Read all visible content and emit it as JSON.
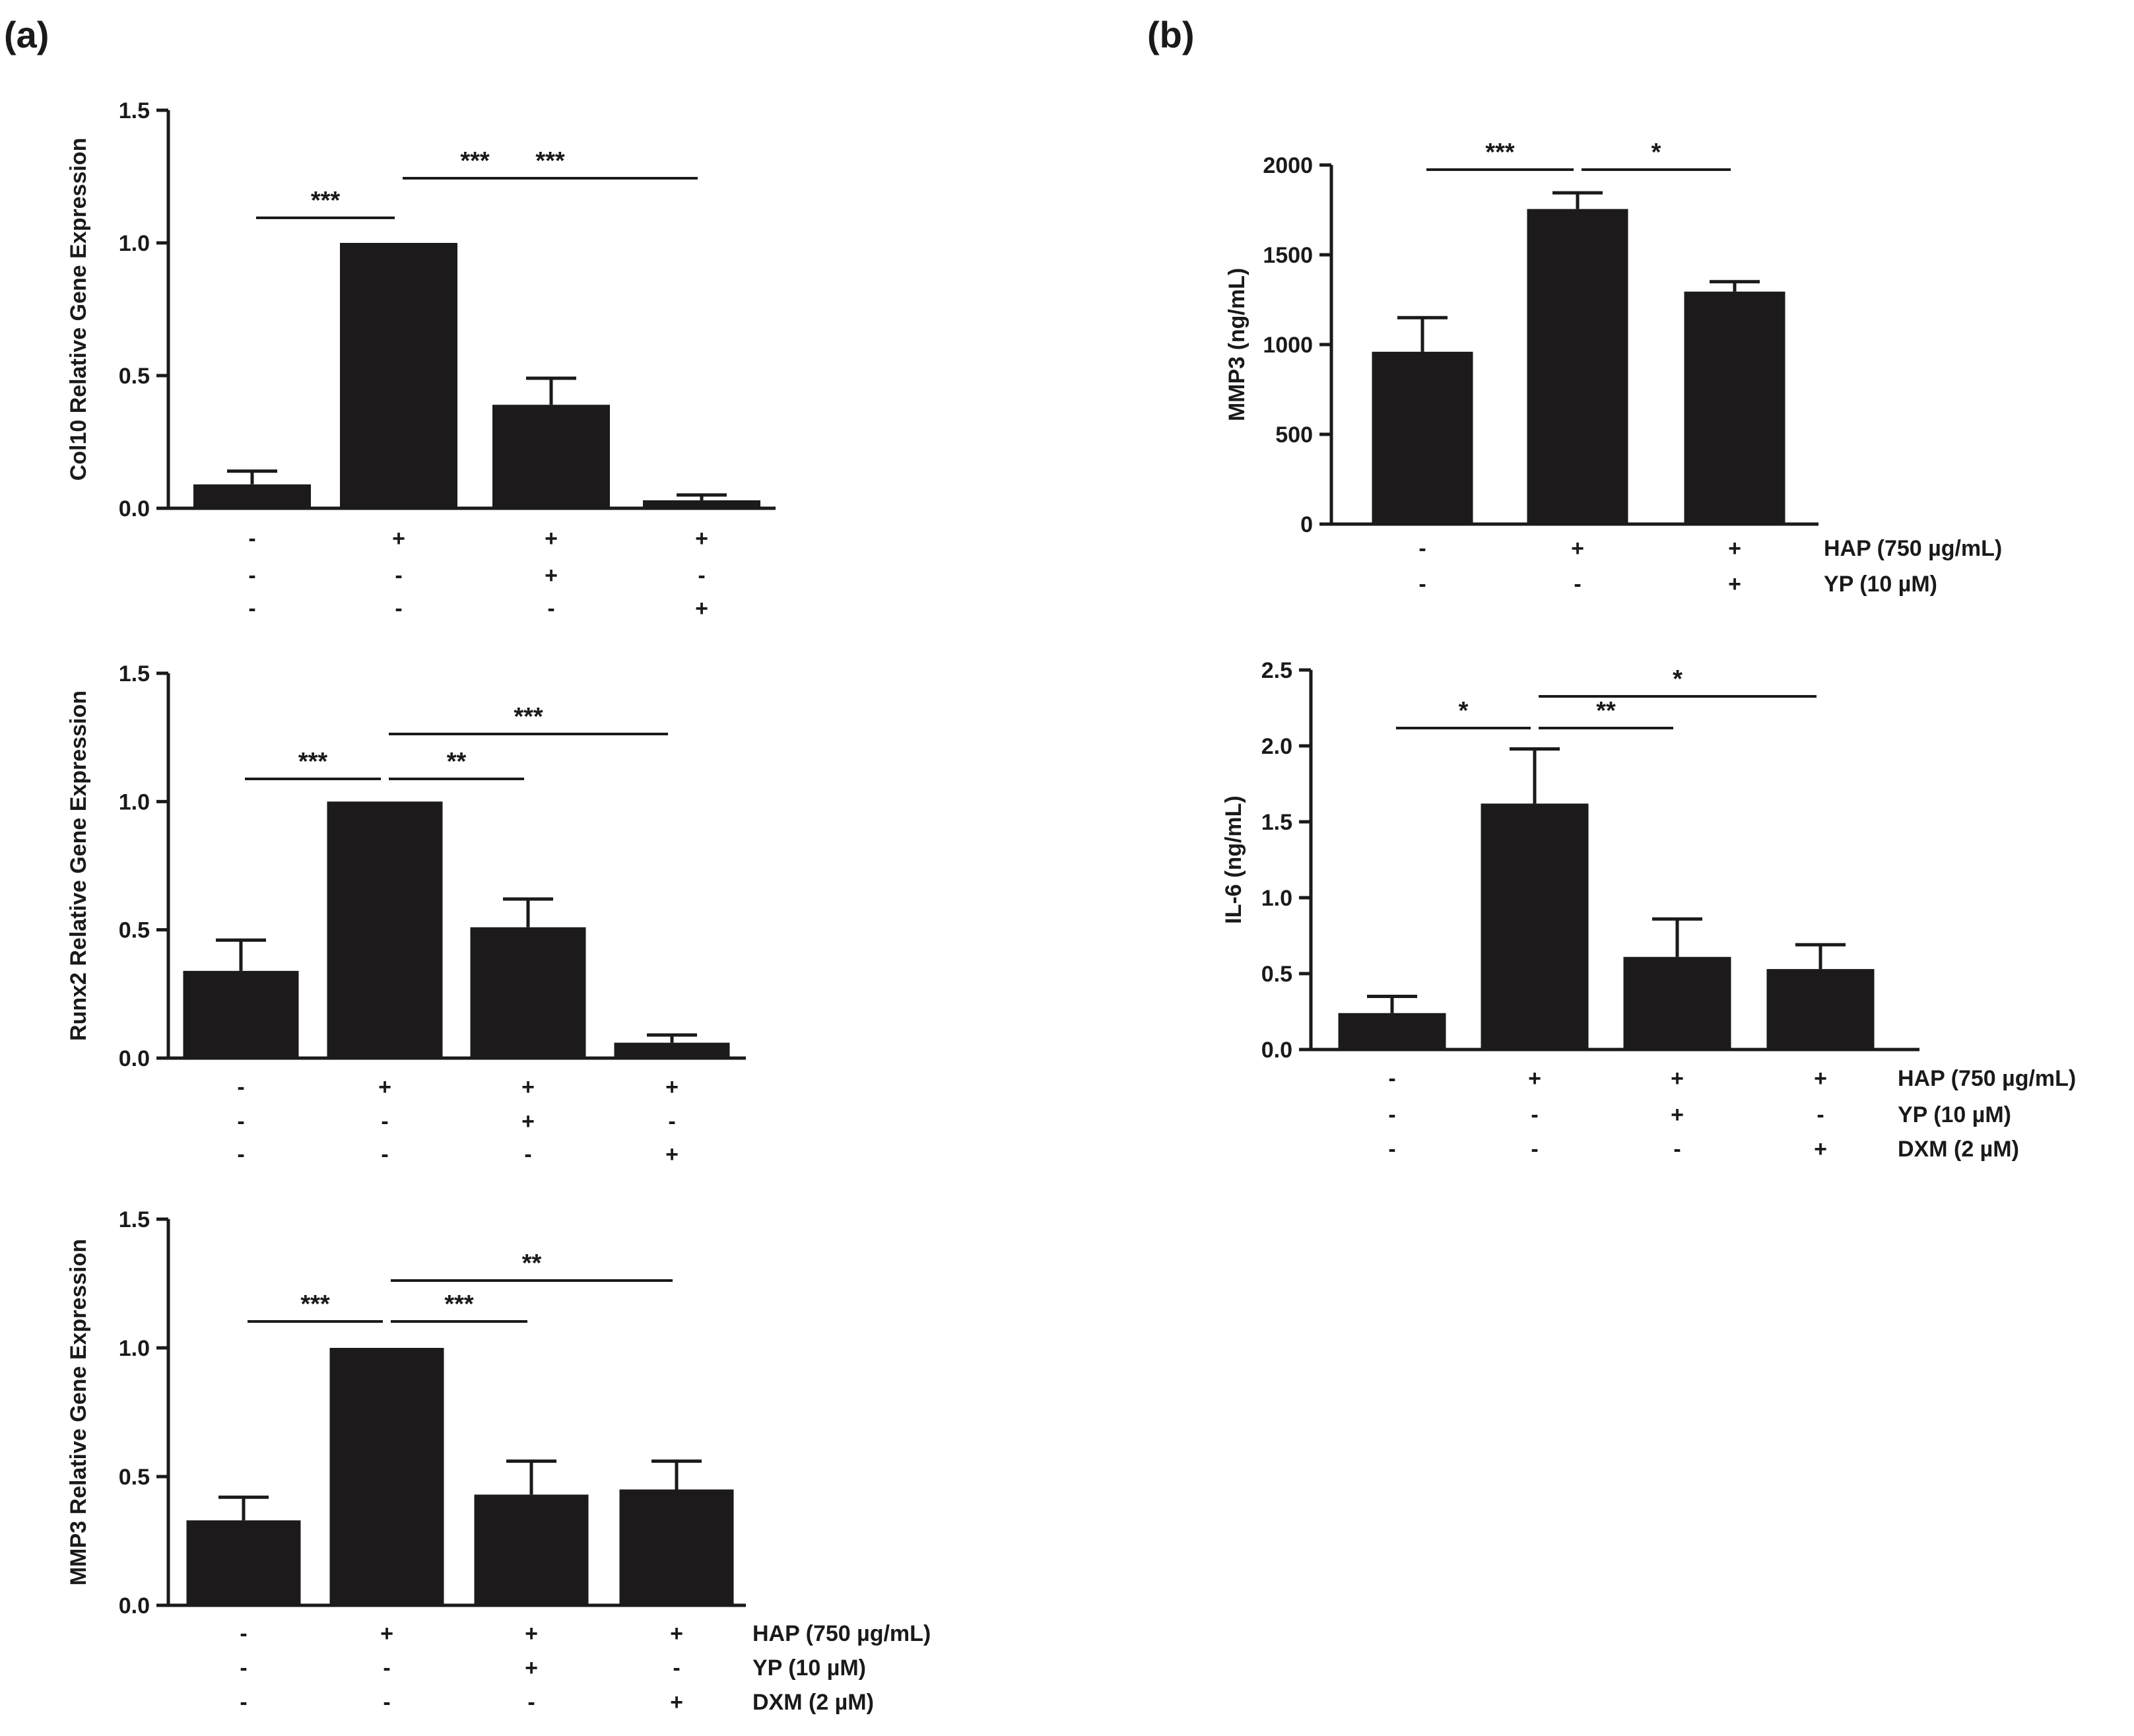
{
  "panels": [
    {
      "label": "(a)"
    },
    {
      "label": "(b)"
    }
  ],
  "chart_data": [
    {
      "type": "bar",
      "panel": "(a)",
      "title": "",
      "xlabel": "",
      "ylabel": "Col10 Relative Gene Expression",
      "ylim": [
        0,
        1.5
      ],
      "yticks": [
        "0.0",
        "0.5",
        "1.0",
        "1.5"
      ],
      "values": [
        0.09,
        1.0,
        0.39,
        0.03
      ],
      "errors": [
        0.05,
        0.0,
        0.1,
        0.02
      ],
      "conditions": [
        {
          "name": "HAP (750 µg/mL)",
          "signs": [
            "-",
            "+",
            "+",
            "+"
          ]
        },
        {
          "name": "YP (10 µM)",
          "signs": [
            "-",
            "-",
            "+",
            "-"
          ]
        },
        {
          "name": "DXM (2 µM)",
          "signs": [
            "-",
            "-",
            "-",
            "+"
          ]
        }
      ],
      "show_condition_names": false,
      "significance": [
        {
          "from": 0,
          "to": 1,
          "label": "***"
        },
        {
          "from": 1,
          "to": 2,
          "label": "***"
        },
        {
          "from": 1,
          "to": 3,
          "label": "***"
        }
      ]
    },
    {
      "type": "bar",
      "panel": "(a)",
      "title": "",
      "xlabel": "",
      "ylabel": "Runx2 Relative Gene Expression",
      "ylim": [
        0,
        1.5
      ],
      "yticks": [
        "0.0",
        "0.5",
        "1.0",
        "1.5"
      ],
      "values": [
        0.34,
        1.0,
        0.51,
        0.06
      ],
      "errors": [
        0.12,
        0.0,
        0.11,
        0.03
      ],
      "conditions": [
        {
          "name": "HAP (750 µg/mL)",
          "signs": [
            "-",
            "+",
            "+",
            "+"
          ]
        },
        {
          "name": "YP (10 µM)",
          "signs": [
            "-",
            "-",
            "+",
            "-"
          ]
        },
        {
          "name": "DXM (2 µM)",
          "signs": [
            "-",
            "-",
            "-",
            "+"
          ]
        }
      ],
      "show_condition_names": false,
      "significance": [
        {
          "from": 0,
          "to": 1,
          "label": "***"
        },
        {
          "from": 1,
          "to": 2,
          "label": "**"
        },
        {
          "from": 1,
          "to": 3,
          "label": "***"
        }
      ]
    },
    {
      "type": "bar",
      "panel": "(a)",
      "title": "",
      "xlabel": "",
      "ylabel": "MMP3 Relative Gene Expression",
      "ylim": [
        0,
        1.5
      ],
      "yticks": [
        "0.0",
        "0.5",
        "1.0",
        "1.5"
      ],
      "values": [
        0.33,
        1.0,
        0.43,
        0.45
      ],
      "errors": [
        0.09,
        0.0,
        0.13,
        0.11
      ],
      "conditions": [
        {
          "name": "HAP (750 µg/mL)",
          "signs": [
            "-",
            "+",
            "+",
            "+"
          ]
        },
        {
          "name": "YP (10 µM)",
          "signs": [
            "-",
            "-",
            "+",
            "-"
          ]
        },
        {
          "name": "DXM (2 µM)",
          "signs": [
            "-",
            "-",
            "-",
            "+"
          ]
        }
      ],
      "show_condition_names": true,
      "significance": [
        {
          "from": 0,
          "to": 1,
          "label": "***"
        },
        {
          "from": 1,
          "to": 2,
          "label": "***"
        },
        {
          "from": 1,
          "to": 3,
          "label": "**"
        }
      ]
    },
    {
      "type": "bar",
      "panel": "(b)",
      "title": "",
      "xlabel": "",
      "ylabel": "MMP3 (ng/mL)",
      "ylim": [
        0,
        2000
      ],
      "yticks": [
        "0",
        "500",
        "1000",
        "1500",
        "2000"
      ],
      "values": [
        960,
        1755,
        1295
      ],
      "errors": [
        190,
        90,
        55
      ],
      "conditions": [
        {
          "name": "HAP (750 µg/mL)",
          "signs": [
            "-",
            "+",
            "+"
          ]
        },
        {
          "name": "YP (10 µM)",
          "signs": [
            "-",
            "-",
            "+"
          ]
        }
      ],
      "show_condition_names": true,
      "significance": [
        {
          "from": 0,
          "to": 1,
          "label": "***"
        },
        {
          "from": 1,
          "to": 2,
          "label": "*"
        }
      ]
    },
    {
      "type": "bar",
      "panel": "(b)",
      "title": "",
      "xlabel": "",
      "ylabel": "IL-6 (ng/mL)",
      "ylim": [
        0,
        2.5
      ],
      "yticks": [
        "0.0",
        "0.5",
        "1.0",
        "1.5",
        "2.0",
        "2.5"
      ],
      "values": [
        0.24,
        1.62,
        0.61,
        0.53
      ],
      "errors": [
        0.11,
        0.36,
        0.25,
        0.16
      ],
      "conditions": [
        {
          "name": "HAP (750 µg/mL)",
          "signs": [
            "-",
            "+",
            "+",
            "+"
          ]
        },
        {
          "name": "YP (10 µM)",
          "signs": [
            "-",
            "-",
            "+",
            "-"
          ]
        },
        {
          "name": "DXM (2 µM)",
          "signs": [
            "-",
            "-",
            "-",
            "+"
          ]
        }
      ],
      "show_condition_names": true,
      "significance": [
        {
          "from": 0,
          "to": 1,
          "label": "*"
        },
        {
          "from": 1,
          "to": 2,
          "label": "**"
        },
        {
          "from": 1,
          "to": 3,
          "label": "*"
        }
      ]
    }
  ],
  "colors": {
    "bar": "#1c1a1b",
    "line": "#1a1a1a"
  }
}
